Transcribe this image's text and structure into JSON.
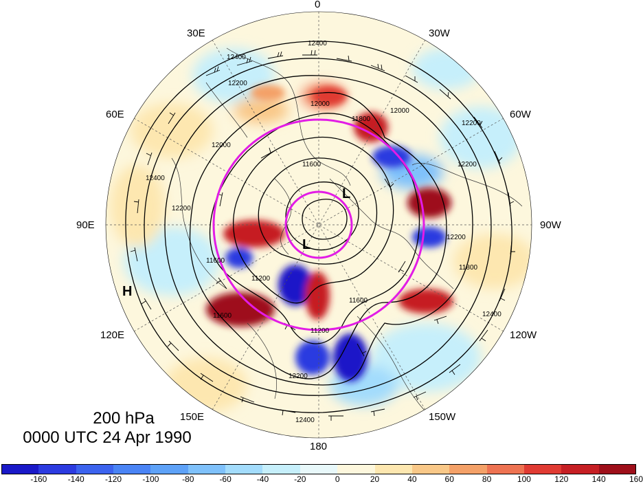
{
  "title": {
    "level": "200 hPa",
    "time": "0000 UTC 24 Apr 1990"
  },
  "longitude_labels": {
    "lon_0": "0",
    "lon_30w": "30W",
    "lon_60w": "60W",
    "lon_90w": "90W",
    "lon_120w": "120W",
    "lon_150w": "150W",
    "lon_180": "180",
    "lon_150e": "150E",
    "lon_120e": "120E",
    "lon_90e": "90E",
    "lon_60e": "60E",
    "lon_30e": "30E"
  },
  "pressure_centers": [
    {
      "label": "L"
    },
    {
      "label": "L"
    },
    {
      "label": "H"
    }
  ],
  "contour_labels": [
    "12400",
    "12200",
    "12000",
    "11800",
    "11600",
    "11200",
    "12400",
    "12200",
    "12000",
    "11800",
    "11600",
    "12400",
    "12200",
    "12000",
    "11600",
    "12200",
    "12400",
    "12200",
    "11600",
    "12400",
    "11200",
    "12200"
  ],
  "colorbar": {
    "ticks": [
      "-160",
      "-140",
      "-120",
      "-100",
      "-80",
      "-60",
      "-40",
      "-20",
      "0",
      "20",
      "40",
      "60",
      "80",
      "100",
      "120",
      "140",
      "160"
    ],
    "colors": [
      "#1a19c8",
      "#2c3be0",
      "#3c63ee",
      "#4a84f5",
      "#5ea2f8",
      "#7fc1fb",
      "#a3dcfc",
      "#c6effb",
      "#e8f8fa",
      "#fdf7dd",
      "#fde7b0",
      "#f9c888",
      "#f4a168",
      "#ee7352",
      "#e03b33",
      "#c61f24",
      "#9e0f1a"
    ]
  },
  "colors": {
    "reference_circle": "#e21ce6",
    "contour": "#000000"
  }
}
